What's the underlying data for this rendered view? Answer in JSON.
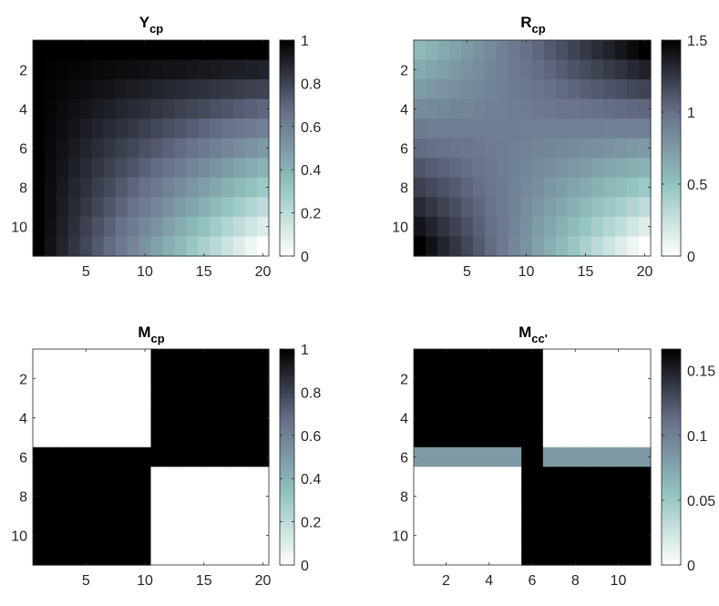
{
  "chart_data": [
    {
      "type": "heatmap",
      "title": "Y",
      "title_sub": "cp",
      "xlabel": "",
      "ylabel": "",
      "rows": 11,
      "cols": 20,
      "x_ticks": [
        5,
        10,
        15,
        20
      ],
      "x_tick_labels": [
        "5",
        "10",
        "15",
        "20"
      ],
      "y_ticks": [
        2,
        4,
        6,
        8,
        10
      ],
      "y_tick_labels": [
        "2",
        "4",
        "6",
        "8",
        "10"
      ],
      "colorbar": {
        "range": [
          0,
          1
        ],
        "ticks": [
          0,
          0.2,
          0.4,
          0.6,
          0.8,
          1
        ],
        "tick_labels": [
          "0",
          "0.2",
          "0.4",
          "0.6",
          "0.8",
          "1"
        ]
      },
      "formula": "1 - ((row-1)/10) * ((col-1)/19)",
      "grid": false
    },
    {
      "type": "heatmap",
      "title": "R",
      "title_sub": "cp",
      "xlabel": "",
      "ylabel": "",
      "rows": 11,
      "cols": 20,
      "x_ticks": [
        5,
        10,
        15,
        20
      ],
      "x_tick_labels": [
        "5",
        "10",
        "15",
        "20"
      ],
      "y_ticks": [
        2,
        4,
        6,
        8,
        10
      ],
      "y_tick_labels": [
        "2",
        "4",
        "6",
        "8",
        "10"
      ],
      "colorbar": {
        "range": [
          0,
          1.5
        ],
        "ticks": [
          0,
          0.5,
          1,
          1.5
        ],
        "tick_labels": [
          "0",
          "0.5",
          "1",
          "1.5"
        ]
      },
      "corners": {
        "top_left": 0.55,
        "top_right": 1.5,
        "bottom_left": 1.5,
        "bottom_right": 0.0
      },
      "grid": false
    },
    {
      "type": "heatmap",
      "title": "M",
      "title_sub": "cp",
      "xlabel": "",
      "ylabel": "",
      "rows": 11,
      "cols": 20,
      "x_ticks": [
        5,
        10,
        15,
        20
      ],
      "x_tick_labels": [
        "5",
        "10",
        "15",
        "20"
      ],
      "y_ticks": [
        2,
        4,
        6,
        8,
        10
      ],
      "y_tick_labels": [
        "2",
        "4",
        "6",
        "8",
        "10"
      ],
      "colorbar": {
        "range": [
          0,
          1
        ],
        "ticks": [
          0,
          0.2,
          0.4,
          0.6,
          0.8,
          1
        ],
        "tick_labels": [
          "0",
          "0.2",
          "0.4",
          "0.6",
          "0.8",
          "1"
        ]
      },
      "blocks": [
        {
          "rows": [
            1,
            5
          ],
          "cols": [
            1,
            10
          ],
          "value": 0
        },
        {
          "rows": [
            1,
            5
          ],
          "cols": [
            11,
            20
          ],
          "value": 1
        },
        {
          "rows": [
            6,
            6
          ],
          "cols": [
            1,
            10
          ],
          "value": 1
        },
        {
          "rows": [
            6,
            6
          ],
          "cols": [
            11,
            20
          ],
          "value": 1
        },
        {
          "rows": [
            7,
            11
          ],
          "cols": [
            1,
            10
          ],
          "value": 1
        },
        {
          "rows": [
            7,
            11
          ],
          "cols": [
            11,
            20
          ],
          "value": 0
        }
      ],
      "grid": false
    },
    {
      "type": "heatmap",
      "title": "M",
      "title_sub": "cc'",
      "xlabel": "",
      "ylabel": "",
      "rows": 11,
      "cols": 11,
      "x_ticks": [
        2,
        4,
        6,
        8,
        10
      ],
      "x_tick_labels": [
        "2",
        "4",
        "6",
        "8",
        "10"
      ],
      "y_ticks": [
        2,
        4,
        6,
        8,
        10
      ],
      "y_tick_labels": [
        "2",
        "4",
        "6",
        "8",
        "10"
      ],
      "colorbar": {
        "range": [
          0,
          0.1667
        ],
        "ticks": [
          0,
          0.05,
          0.1,
          0.15
        ],
        "tick_labels": [
          "0",
          "0.05",
          "0.1",
          "0.15"
        ]
      },
      "blocks": [
        {
          "rows": [
            1,
            5
          ],
          "cols": [
            1,
            6
          ],
          "value": 0.1667
        },
        {
          "rows": [
            1,
            5
          ],
          "cols": [
            7,
            11
          ],
          "value": 0
        },
        {
          "rows": [
            6,
            6
          ],
          "cols": [
            1,
            5
          ],
          "value": 0.0833
        },
        {
          "rows": [
            6,
            6
          ],
          "cols": [
            6,
            6
          ],
          "value": 0.1667
        },
        {
          "rows": [
            6,
            6
          ],
          "cols": [
            7,
            11
          ],
          "value": 0.0833
        },
        {
          "rows": [
            7,
            11
          ],
          "cols": [
            1,
            5
          ],
          "value": 0
        },
        {
          "rows": [
            7,
            11
          ],
          "cols": [
            6,
            11
          ],
          "value": 0.1667
        }
      ],
      "grid": false
    }
  ],
  "colormap": [
    "#ffffff",
    "#93c4c0",
    "#68708a",
    "#000000"
  ]
}
